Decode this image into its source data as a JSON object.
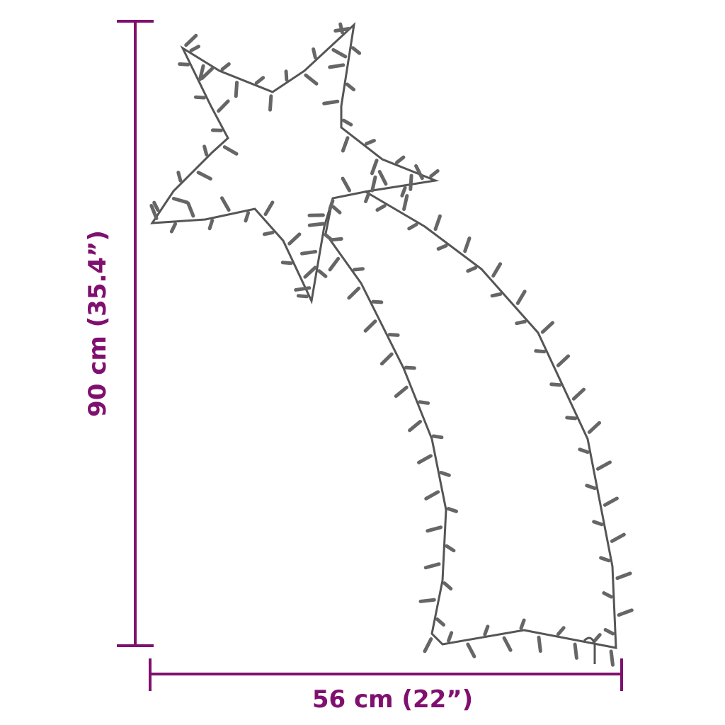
{
  "product": "shooting star light silhouette",
  "colors": {
    "dimension": "#80106f",
    "outline": "#555555"
  },
  "dimensions": {
    "height_label": "90 cm (35.4”)",
    "width_label": "56 cm (22”)"
  }
}
